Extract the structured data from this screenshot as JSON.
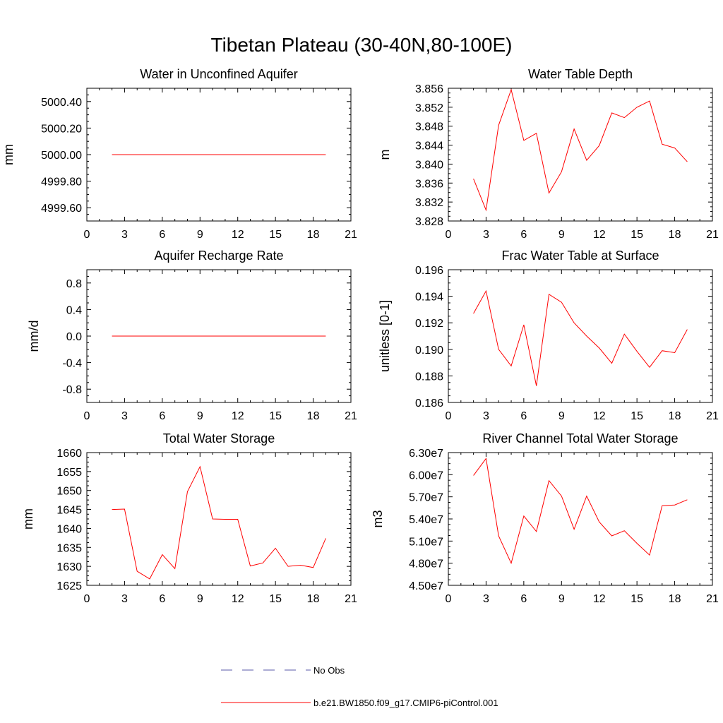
{
  "title": "Tibetan Plateau (30-40N,80-100E)",
  "colors": {
    "model": "#ff0000",
    "obs": "#5a5aa8",
    "axis": "#000000"
  },
  "legend": [
    {
      "label": "No Obs",
      "style": "dashed",
      "color": "#5a5aa8"
    },
    {
      "label": "b.e21.BW1850.f09_g17.CMIP6-piControl.001",
      "style": "solid",
      "color": "#ff0000"
    }
  ],
  "chart_data": [
    {
      "type": "line",
      "title": "Water in Unconfined Aquifer",
      "xlabel": "",
      "ylabel": "mm",
      "xlim": [
        0,
        21
      ],
      "ylim": [
        4999.5,
        5000.5
      ],
      "xticks": [
        0,
        3,
        6,
        9,
        12,
        15,
        18,
        21
      ],
      "xtick_labels": [
        "0",
        "3",
        "6",
        "9",
        "12",
        "15",
        "18",
        "21"
      ],
      "yticks": [
        4999.6,
        4999.8,
        5000.0,
        5000.2,
        5000.4
      ],
      "ytick_labels": [
        "4999.60",
        "4999.80",
        "5000.00",
        "5000.20",
        "5000.40"
      ],
      "x": [
        2,
        3,
        4,
        5,
        6,
        7,
        8,
        9,
        10,
        11,
        12,
        13,
        14,
        15,
        16,
        17,
        18,
        19
      ],
      "series": [
        {
          "color": "#ff0000",
          "values": [
            5000,
            5000,
            5000,
            5000,
            5000,
            5000,
            5000,
            5000,
            5000,
            5000,
            5000,
            5000,
            5000,
            5000,
            5000,
            5000,
            5000,
            5000
          ]
        }
      ]
    },
    {
      "type": "line",
      "title": "Water Table Depth",
      "xlabel": "",
      "ylabel": "m",
      "xlim": [
        0,
        21
      ],
      "ylim": [
        3.828,
        3.856
      ],
      "xticks": [
        0,
        3,
        6,
        9,
        12,
        15,
        18,
        21
      ],
      "xtick_labels": [
        "0",
        "3",
        "6",
        "9",
        "12",
        "15",
        "18",
        "21"
      ],
      "yticks": [
        3.828,
        3.832,
        3.836,
        3.84,
        3.844,
        3.848,
        3.852,
        3.856
      ],
      "ytick_labels": [
        "3.828",
        "3.832",
        "3.836",
        "3.840",
        "3.844",
        "3.848",
        "3.852",
        "3.856"
      ],
      "x": [
        2,
        3,
        4,
        5,
        6,
        7,
        8,
        9,
        10,
        11,
        12,
        13,
        14,
        15,
        16,
        17,
        18,
        19
      ],
      "series": [
        {
          "color": "#ff0000",
          "values": [
            3.8369,
            3.8303,
            3.8482,
            3.8557,
            3.845,
            3.8465,
            3.8339,
            3.8384,
            3.8474,
            3.8408,
            3.8439,
            3.8508,
            3.8498,
            3.852,
            3.8533,
            3.8442,
            3.8434,
            3.8405
          ]
        }
      ]
    },
    {
      "type": "line",
      "title": "Aquifer Recharge Rate",
      "xlabel": "",
      "ylabel": "mm/d",
      "xlim": [
        0,
        21
      ],
      "ylim": [
        -1.0,
        1.0
      ],
      "xticks": [
        0,
        3,
        6,
        9,
        12,
        15,
        18,
        21
      ],
      "xtick_labels": [
        "0",
        "3",
        "6",
        "9",
        "12",
        "15",
        "18",
        "21"
      ],
      "yticks": [
        -0.8,
        -0.4,
        0.0,
        0.4,
        0.8
      ],
      "ytick_labels": [
        "-0.8",
        "-0.4",
        "0.0",
        "0.4",
        "0.8"
      ],
      "x": [
        2,
        3,
        4,
        5,
        6,
        7,
        8,
        9,
        10,
        11,
        12,
        13,
        14,
        15,
        16,
        17,
        18,
        19
      ],
      "series": [
        {
          "color": "#ff0000",
          "values": [
            0,
            0,
            0,
            0,
            0,
            0,
            0,
            0,
            0,
            0,
            0,
            0,
            0,
            0,
            0,
            0,
            0,
            0
          ]
        }
      ]
    },
    {
      "type": "line",
      "title": "Frac Water Table at Surface",
      "xlabel": "",
      "ylabel": "unitless [0-1]",
      "xlim": [
        0,
        21
      ],
      "ylim": [
        0.186,
        0.196
      ],
      "xticks": [
        0,
        3,
        6,
        9,
        12,
        15,
        18,
        21
      ],
      "xtick_labels": [
        "0",
        "3",
        "6",
        "9",
        "12",
        "15",
        "18",
        "21"
      ],
      "yticks": [
        0.186,
        0.188,
        0.19,
        0.192,
        0.194,
        0.196
      ],
      "ytick_labels": [
        "0.186",
        "0.188",
        "0.190",
        "0.192",
        "0.194",
        "0.196"
      ],
      "x": [
        2,
        3,
        4,
        5,
        6,
        7,
        8,
        9,
        10,
        11,
        12,
        13,
        14,
        15,
        16,
        17,
        18,
        19
      ],
      "series": [
        {
          "color": "#ff0000",
          "values": [
            0.1927,
            0.1944,
            0.19,
            0.18875,
            0.19185,
            0.18725,
            0.19415,
            0.19355,
            0.192,
            0.191,
            0.1901,
            0.18895,
            0.19115,
            0.18985,
            0.18865,
            0.1899,
            0.18975,
            0.1915
          ]
        }
      ]
    },
    {
      "type": "line",
      "title": "Total Water Storage",
      "xlabel": "",
      "ylabel": "mm",
      "xlim": [
        0,
        21
      ],
      "ylim": [
        1625,
        1660
      ],
      "xticks": [
        0,
        3,
        6,
        9,
        12,
        15,
        18,
        21
      ],
      "xtick_labels": [
        "0",
        "3",
        "6",
        "9",
        "12",
        "15",
        "18",
        "21"
      ],
      "yticks": [
        1625,
        1630,
        1635,
        1640,
        1645,
        1650,
        1655,
        1660
      ],
      "ytick_labels": [
        "1625",
        "1630",
        "1635",
        "1640",
        "1645",
        "1650",
        "1655",
        "1660"
      ],
      "x": [
        2,
        3,
        4,
        5,
        6,
        7,
        8,
        9,
        10,
        11,
        12,
        13,
        14,
        15,
        16,
        17,
        18,
        19
      ],
      "series": [
        {
          "color": "#ff0000",
          "values": [
            1645.0,
            1645.1,
            1628.7,
            1626.7,
            1633.1,
            1629.4,
            1649.7,
            1656.3,
            1642.5,
            1642.4,
            1642.4,
            1630.1,
            1630.9,
            1634.8,
            1630.0,
            1630.3,
            1629.7,
            1637.4
          ]
        }
      ]
    },
    {
      "type": "line",
      "title": "River Channel Total Water Storage",
      "xlabel": "",
      "ylabel": "m3",
      "xlim": [
        0,
        21
      ],
      "ylim": [
        45000000,
        63000000
      ],
      "xticks": [
        0,
        3,
        6,
        9,
        12,
        15,
        18,
        21
      ],
      "xtick_labels": [
        "0",
        "3",
        "6",
        "9",
        "12",
        "15",
        "18",
        "21"
      ],
      "yticks": [
        45000000,
        48000000,
        51000000,
        54000000,
        57000000,
        60000000,
        63000000
      ],
      "ytick_labels": [
        "4.50e7",
        "4.80e7",
        "5.10e7",
        "5.40e7",
        "5.70e7",
        "6.00e7",
        "6.30e7"
      ],
      "x": [
        2,
        3,
        4,
        5,
        6,
        7,
        8,
        9,
        10,
        11,
        12,
        13,
        14,
        15,
        16,
        17,
        18,
        19
      ],
      "series": [
        {
          "color": "#ff0000",
          "values": [
            59900000,
            62200000,
            51700000,
            48000000,
            54400000,
            52300000,
            59200000,
            57100000,
            52600000,
            57100000,
            53600000,
            51700000,
            52400000,
            50700000,
            49100000,
            55800000,
            55900000,
            56600000
          ]
        }
      ]
    }
  ]
}
